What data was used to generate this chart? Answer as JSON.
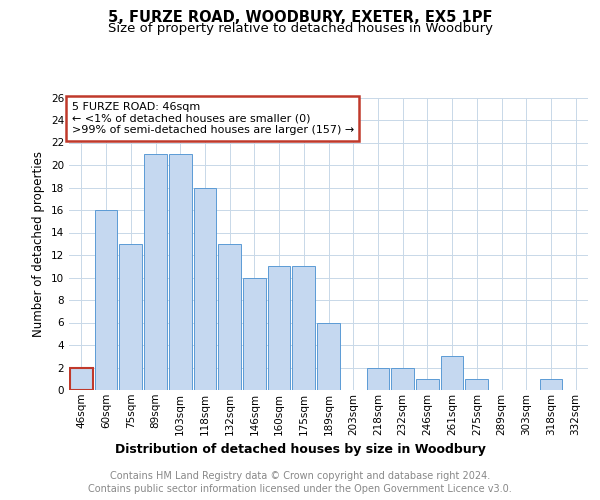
{
  "title": "5, FURZE ROAD, WOODBURY, EXETER, EX5 1PF",
  "subtitle": "Size of property relative to detached houses in Woodbury",
  "xlabel": "Distribution of detached houses by size in Woodbury",
  "ylabel": "Number of detached properties",
  "categories": [
    "46sqm",
    "60sqm",
    "75sqm",
    "89sqm",
    "103sqm",
    "118sqm",
    "132sqm",
    "146sqm",
    "160sqm",
    "175sqm",
    "189sqm",
    "203sqm",
    "218sqm",
    "232sqm",
    "246sqm",
    "261sqm",
    "275sqm",
    "289sqm",
    "303sqm",
    "318sqm",
    "332sqm"
  ],
  "values": [
    2,
    16,
    13,
    21,
    21,
    18,
    13,
    10,
    11,
    11,
    6,
    0,
    2,
    2,
    1,
    3,
    1,
    0,
    0,
    1,
    0
  ],
  "bar_color": "#c5d8f0",
  "bar_edge_color": "#5b9bd5",
  "highlight_index": 0,
  "highlight_bar_edge_color": "#c0392b",
  "annotation_box_text": "5 FURZE ROAD: 46sqm\n← <1% of detached houses are smaller (0)\n>99% of semi-detached houses are larger (157) →",
  "annotation_box_edge_color": "#c0392b",
  "ylim": [
    0,
    26
  ],
  "yticks": [
    0,
    2,
    4,
    6,
    8,
    10,
    12,
    14,
    16,
    18,
    20,
    22,
    24,
    26
  ],
  "footer_line1": "Contains HM Land Registry data © Crown copyright and database right 2024.",
  "footer_line2": "Contains public sector information licensed under the Open Government Licence v3.0.",
  "bg_color": "#ffffff",
  "grid_color": "#c8d8e8",
  "title_fontsize": 10.5,
  "subtitle_fontsize": 9.5,
  "xlabel_fontsize": 9,
  "ylabel_fontsize": 8.5,
  "tick_fontsize": 7.5,
  "annot_fontsize": 8,
  "footer_fontsize": 7
}
